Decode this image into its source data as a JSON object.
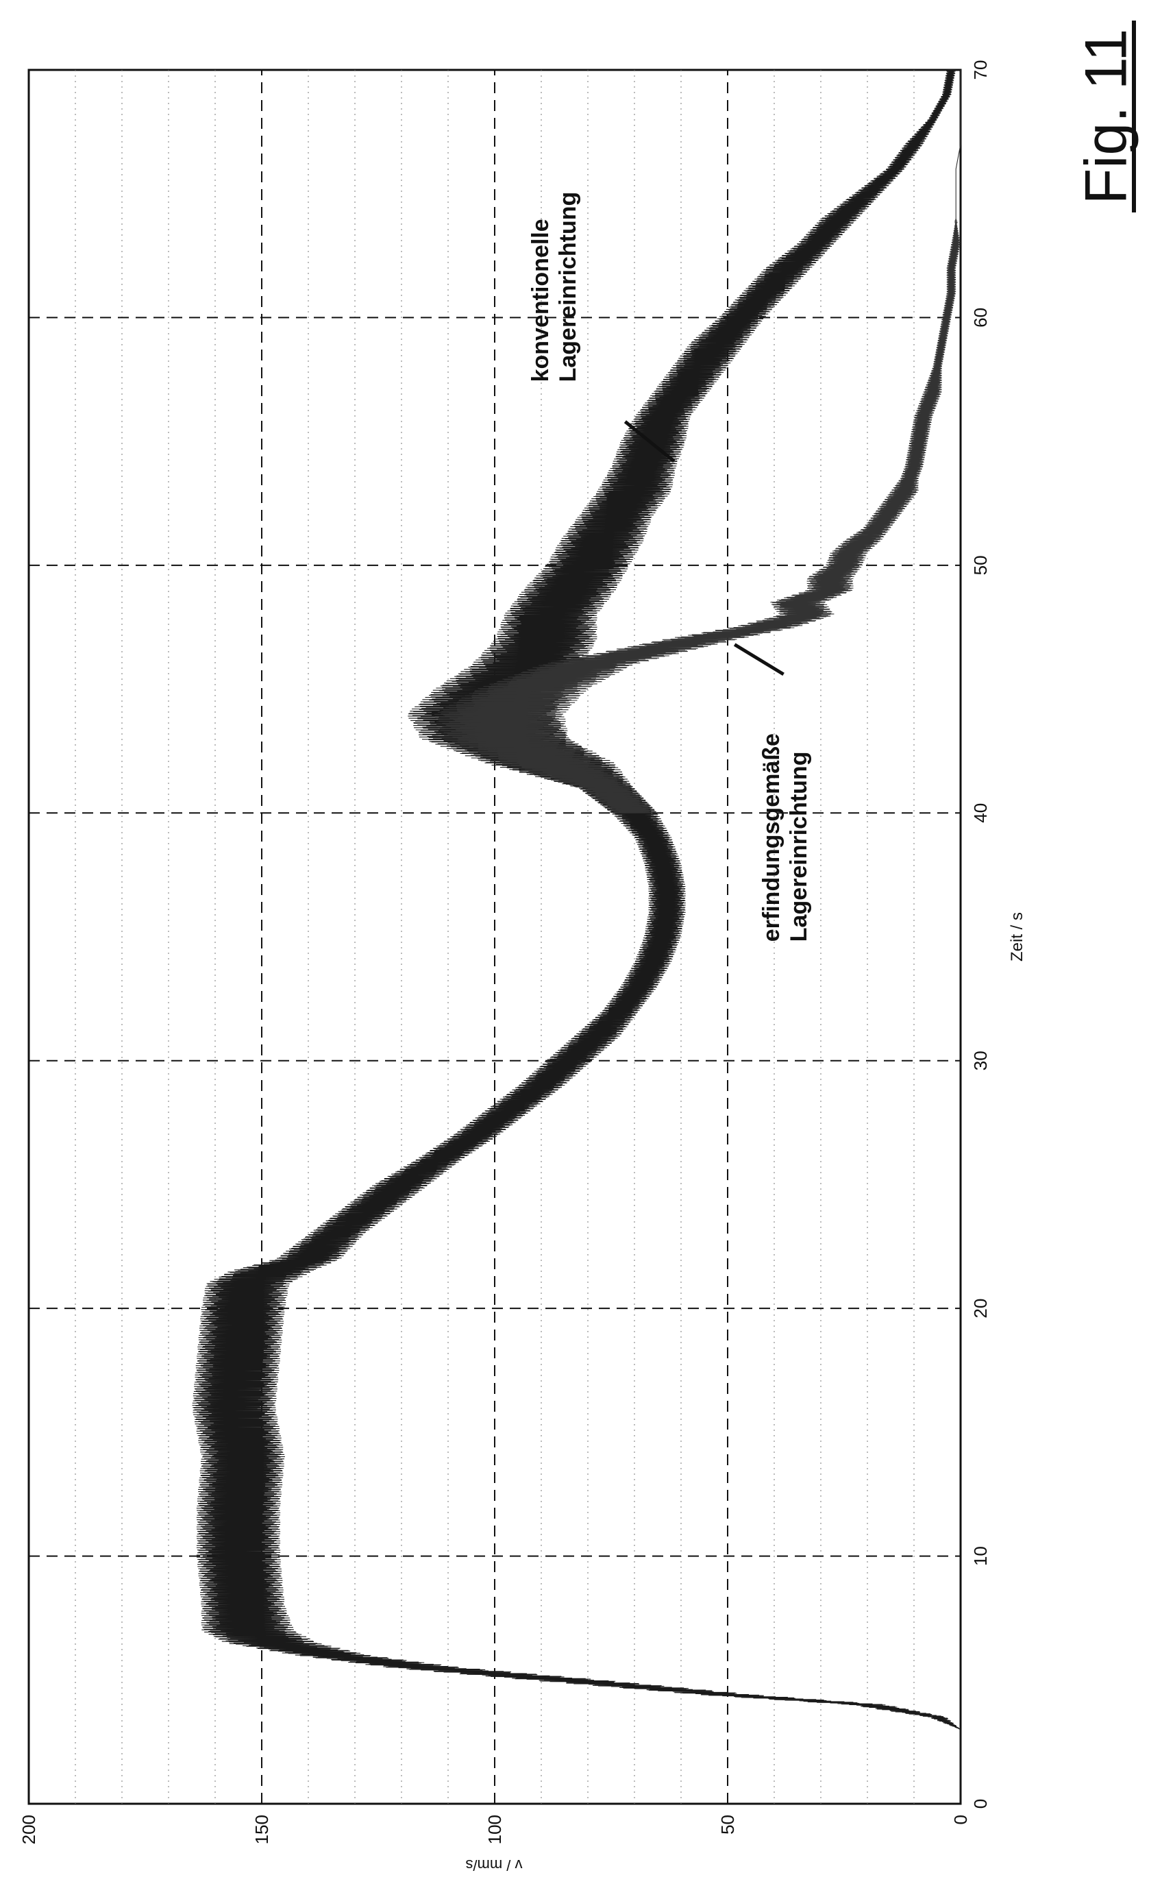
{
  "figure_label": "Fig. 11",
  "chart_data": {
    "type": "line",
    "title": "",
    "xlabel": "Zeit / s",
    "ylabel": "v / mm/s",
    "xlim": [
      0,
      70
    ],
    "ylim": [
      0,
      200
    ],
    "x_ticks": [
      0,
      10,
      20,
      30,
      40,
      50,
      60,
      70
    ],
    "y_ticks": [
      0,
      50,
      100,
      150,
      200
    ],
    "grid": "dashed major lines, dotted minor lines",
    "orientation": "rotated 90 degrees counter-clockwise",
    "colors": {
      "conventional": "#1a1a1a",
      "inventive": "#333333"
    },
    "annotations": [
      {
        "text": "konventionelle\nLagereinrichtung",
        "x": 54,
        "y": 61,
        "series": "konventionelle Lagereinrichtung"
      },
      {
        "text": "erfindungsgemäße\nLagereinrichtung",
        "x": 47,
        "y": 49,
        "series": "erfindungsgemäße Lagereinrichtung"
      }
    ],
    "series": [
      {
        "name": "konventionelle Lagereinrichtung",
        "x": [
          0,
          3,
          3.5,
          4,
          4.4,
          5,
          5.5,
          6,
          6.5,
          7,
          8,
          10,
          12,
          14,
          16,
          18,
          20,
          21,
          21.5,
          22,
          23,
          24,
          25,
          26,
          27,
          28,
          29,
          30,
          31,
          32,
          33,
          34,
          35,
          36,
          37,
          38,
          39,
          40,
          41,
          42,
          43,
          44,
          45,
          46,
          47,
          48,
          49,
          50,
          51,
          52,
          53,
          54,
          55,
          56,
          57,
          58,
          59,
          60,
          61,
          62,
          63,
          64,
          65,
          66,
          67,
          68,
          69,
          70
        ],
        "y": [
          0,
          0,
          5,
          20,
          50,
          85,
          115,
          135,
          148,
          153,
          154,
          155,
          155,
          154,
          156,
          155,
          154,
          153,
          148,
          140,
          134,
          127,
          120,
          112,
          104,
          97,
          90,
          84,
          78,
          73,
          69,
          66,
          64,
          63,
          63,
          64,
          66,
          70,
          76,
          88,
          100,
          103,
          99,
          93,
          89,
          88,
          84,
          80,
          77,
          74,
          70,
          68,
          66,
          64,
          60,
          56,
          52,
          47,
          42,
          37,
          31,
          26,
          20,
          14,
          10,
          6,
          3,
          2
        ],
        "noise_amplitude": [
          0,
          0,
          2,
          4,
          6,
          8,
          8,
          8,
          10,
          10,
          9,
          9,
          9,
          9,
          9,
          9,
          9,
          9,
          9,
          7,
          6,
          6,
          6,
          5,
          5,
          5,
          5,
          5,
          5,
          4,
          4,
          4,
          4,
          4,
          4,
          4,
          4,
          5,
          6,
          14,
          16,
          16,
          14,
          12,
          11,
          10,
          10,
          9,
          9,
          8,
          8,
          7,
          7,
          6,
          6,
          6,
          6,
          5,
          5,
          5,
          4,
          4,
          3,
          2,
          2,
          1,
          1,
          1
        ]
      },
      {
        "name": "erfindungsgemäße Lagereinrichtung",
        "x": [
          40,
          41,
          42,
          43,
          44,
          45,
          46,
          46.5,
          47,
          47.5,
          48,
          48.5,
          49,
          49.5,
          50,
          50.5,
          51,
          51.5,
          52,
          52.5,
          53,
          53.5,
          54,
          55,
          56,
          57,
          58,
          59,
          60,
          61,
          62,
          63,
          64,
          65,
          66,
          67,
          68,
          69,
          70
        ],
        "y": [
          70,
          76,
          88,
          98,
          99,
          92,
          80,
          68,
          56,
          42,
          33,
          35,
          28,
          28,
          25,
          24,
          21,
          18,
          16,
          14,
          12,
          11,
          10,
          9,
          8,
          6,
          5,
          4,
          3,
          2,
          2,
          1,
          1,
          1,
          1,
          0,
          0,
          0,
          0
        ],
        "noise_amplitude": [
          5,
          6,
          12,
          14,
          14,
          12,
          10,
          9,
          8,
          7,
          6,
          6,
          5,
          5,
          4,
          4,
          4,
          3,
          3,
          3,
          3,
          2,
          2,
          2,
          2,
          2,
          1,
          1,
          1,
          1,
          1,
          1,
          0,
          0,
          0,
          0,
          0,
          0,
          0
        ]
      }
    ]
  }
}
